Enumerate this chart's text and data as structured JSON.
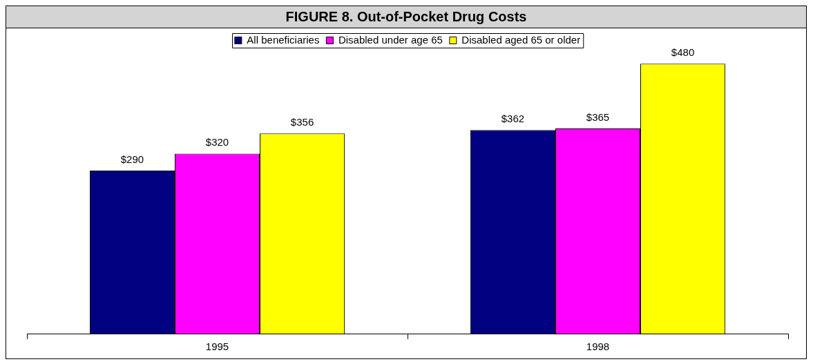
{
  "chart_data": {
    "type": "bar",
    "title": "FIGURE 8. Out-of-Pocket Drug Costs",
    "categories": [
      "1995",
      "1998"
    ],
    "legend": "top",
    "grid": false,
    "series": [
      {
        "name": "All beneficiaries",
        "color": "#000080",
        "values": [
          290,
          362
        ],
        "value_labels": [
          "$290",
          "$362"
        ]
      },
      {
        "name": "Disabled under age 65",
        "color": "#ff00ff",
        "values": [
          320,
          365
        ],
        "value_labels": [
          "$320",
          "$365"
        ]
      },
      {
        "name": "Disabled aged 65 or older",
        "color": "#ffff00",
        "values": [
          356,
          480
        ],
        "value_labels": [
          "$356",
          "$480"
        ]
      }
    ]
  }
}
